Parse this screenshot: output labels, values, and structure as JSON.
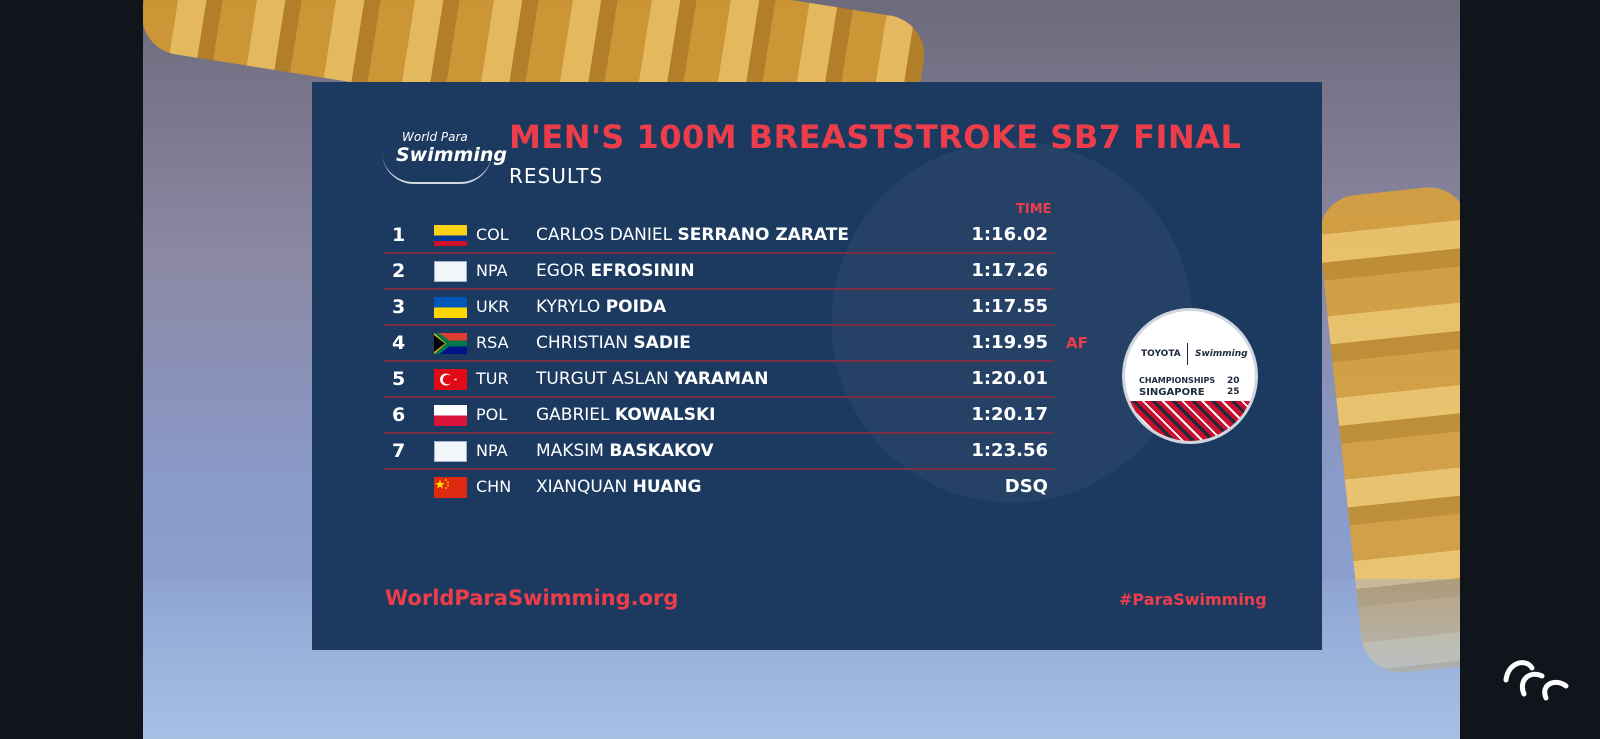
{
  "board": {
    "logo_top": "World Para",
    "logo_bottom": "Swimming",
    "title": "MEN'S 100M BREASTSTROKE SB7 FINAL",
    "subtitle": "RESULTS",
    "time_header": "TIME"
  },
  "results": [
    {
      "rank": "1",
      "flag": "col",
      "code": "COL",
      "first": "CARLOS DANIEL",
      "last": "SERRANO ZARATE",
      "time": "1:16.02",
      "record": ""
    },
    {
      "rank": "2",
      "flag": "npa",
      "code": "NPA",
      "first": "EGOR",
      "last": "EFROSININ",
      "time": "1:17.26",
      "record": ""
    },
    {
      "rank": "3",
      "flag": "ukr",
      "code": "UKR",
      "first": "KYRYLO",
      "last": "POIDA",
      "time": "1:17.55",
      "record": ""
    },
    {
      "rank": "4",
      "flag": "rsa",
      "code": "RSA",
      "first": "CHRISTIAN",
      "last": "SADIE",
      "time": "1:19.95",
      "record": "AF"
    },
    {
      "rank": "5",
      "flag": "tur",
      "code": "TUR",
      "first": "TURGUT ASLAN",
      "last": "YARAMAN",
      "time": "1:20.01",
      "record": ""
    },
    {
      "rank": "6",
      "flag": "pol",
      "code": "POL",
      "first": "GABRIEL",
      "last": "KOWALSKI",
      "time": "1:20.17",
      "record": ""
    },
    {
      "rank": "7",
      "flag": "npa",
      "code": "NPA",
      "first": "MAKSIM",
      "last": "BASKAKOV",
      "time": "1:23.56",
      "record": ""
    },
    {
      "rank": "",
      "flag": "chn",
      "code": "CHN",
      "first": "XIANQUAN",
      "last": "HUANG",
      "time": "DSQ",
      "record": ""
    }
  ],
  "championship_logo": {
    "sponsor": "TOYOTA",
    "brand": "Swimming",
    "line1": "CHAMPIONSHIPS",
    "line2": "SINGAPORE",
    "year_top": "20",
    "year_bottom": "25"
  },
  "footer": {
    "website": "WorldParaSwimming.org",
    "hashtag": "#ParaSwimming"
  },
  "icons": {
    "broadcaster": "paralympic-agitos-icon"
  },
  "colors": {
    "board_bg": "#1c3a60",
    "accent_red": "#ee3d4a",
    "row_divider": "#7a2d44"
  }
}
